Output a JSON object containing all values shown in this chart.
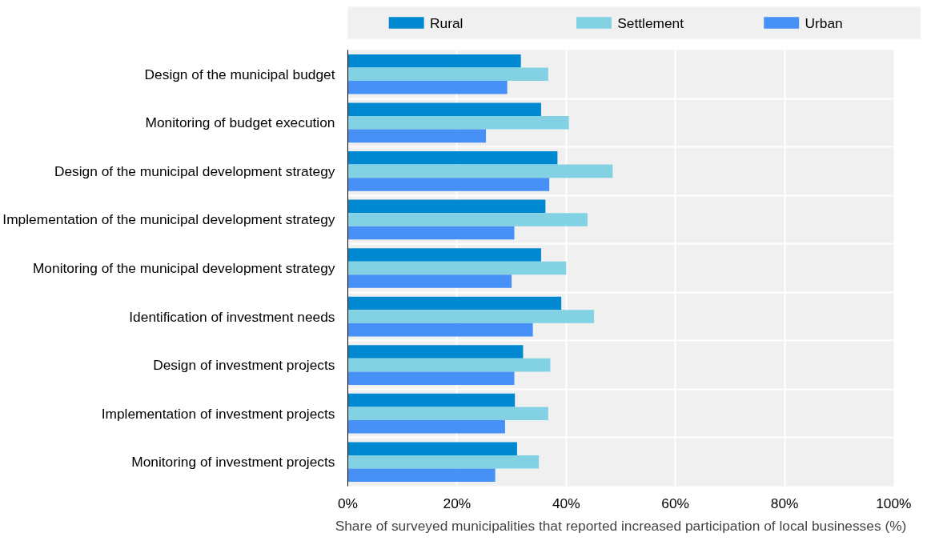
{
  "chart_data": {
    "type": "bar",
    "orientation": "horizontal",
    "xlabel": "Share of surveyed municipalities that reported increased participation of local businesses (%)",
    "categories": [
      "Design of the municipal budget",
      "Monitoring of budget execution",
      "Design of the municipal development strategy",
      "Implementation of the municipal development strategy",
      "Monitoring of the municipal development strategy",
      "Identification of investment needs",
      "Design of investment projects",
      "Implementation of investment projects",
      "Monitoring of investment projects"
    ],
    "series": [
      {
        "name": "Rural",
        "color": "#0089d0",
        "values": [
          31.7,
          35.4,
          38.4,
          36.2,
          35.4,
          39.1,
          32.1,
          30.6,
          31.0
        ]
      },
      {
        "name": "Settlement",
        "color": "#83d2e3",
        "values": [
          36.7,
          40.5,
          48.5,
          43.9,
          40.0,
          45.1,
          37.1,
          36.7,
          35.0
        ]
      },
      {
        "name": "Urban",
        "color": "#4790f5",
        "values": [
          29.2,
          25.3,
          36.9,
          30.5,
          30.0,
          33.9,
          30.5,
          28.8,
          27.0
        ]
      }
    ],
    "xlim": [
      0,
      100
    ],
    "xticks": [
      {
        "value": 0,
        "label": "0%"
      },
      {
        "value": 20,
        "label": "20%"
      },
      {
        "value": 40,
        "label": "40%"
      },
      {
        "value": 60,
        "label": "60%"
      },
      {
        "value": 80,
        "label": "80%"
      },
      {
        "value": 100,
        "label": "100%"
      }
    ],
    "grid": true,
    "legend": "top"
  }
}
